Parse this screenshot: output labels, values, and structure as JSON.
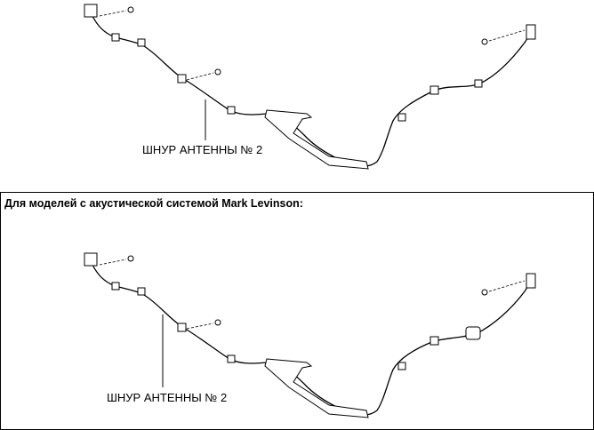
{
  "top_figure": {
    "label": "ШНУР АНТЕННЫ № 2"
  },
  "variant": {
    "heading": "Для моделей с акустической системой Mark Levinson:",
    "figure": {
      "label": "ШНУР АНТЕННЫ № 2"
    }
  }
}
